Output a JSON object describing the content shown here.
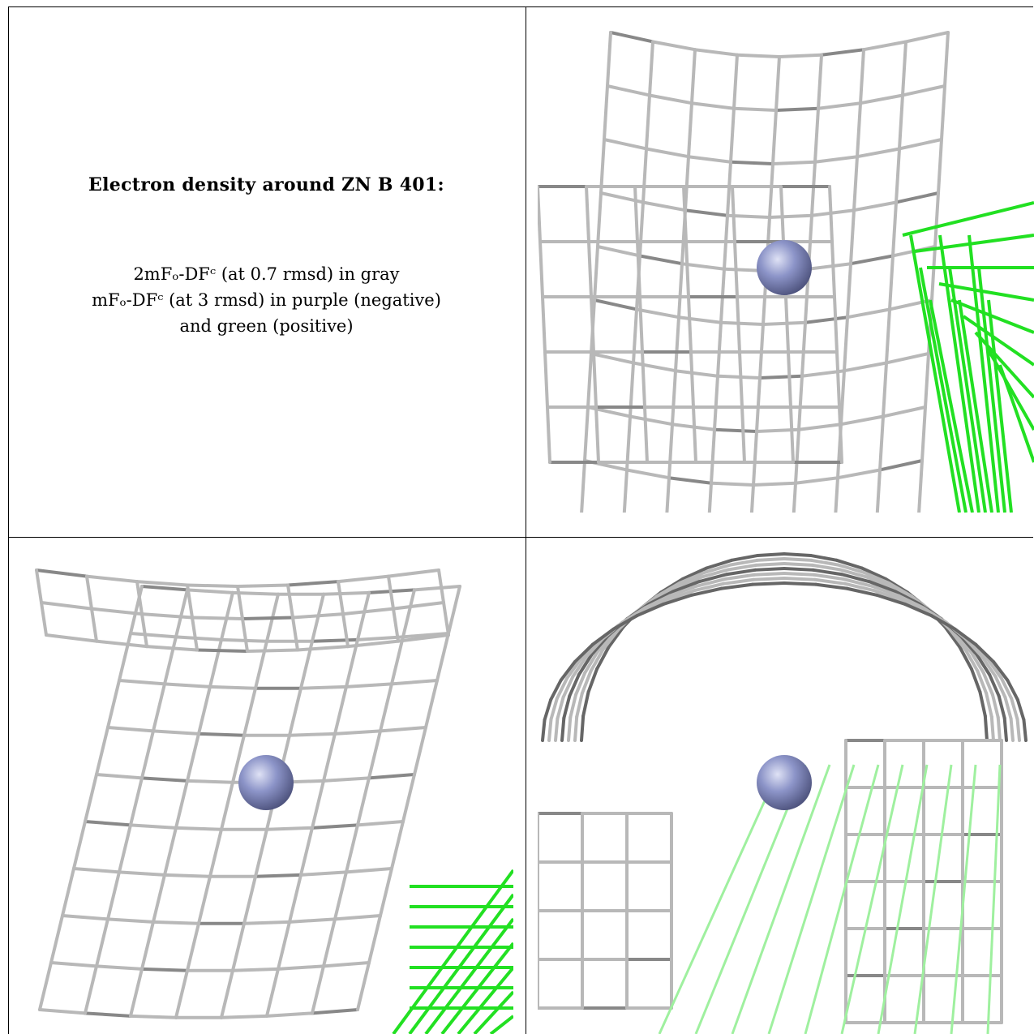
{
  "caption": {
    "title": "Electron density around ZN B 401:",
    "lines": [
      "2mFₒ-DFᶜ (at 0.7 rmsd) in gray",
      "mFₒ-DFᶜ (at 3 rmsd) in purple (negative)",
      "and green (positive)"
    ]
  },
  "colors": {
    "density_gray": "#b8b8b8",
    "density_dark": "#555555",
    "difference_positive": "#22e022",
    "difference_negative": "#9b59b6",
    "zinc_atom": "#8c94c8"
  },
  "panels": [
    {
      "view": "front"
    },
    {
      "view": "oblique"
    },
    {
      "view": "top"
    }
  ]
}
